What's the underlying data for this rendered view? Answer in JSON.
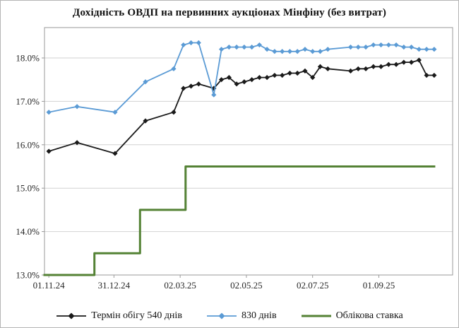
{
  "title": "Дохідність ОВДП на первинних аукціонах Мінфіну (без витрат)",
  "colors": {
    "series_540": "#1a1a1a",
    "series_830": "#5b9bd5",
    "discount_rate": "#548235",
    "gridline": "#d2d2d2",
    "plot_border": "#9a9a9a",
    "tick_text": "#262626"
  },
  "chart_data": {
    "type": "line",
    "title": "Дохідність ОВДП на первинних аукціонах Мінфіну (без витрат)",
    "xlabel": "",
    "ylabel": "",
    "x_unit": "days since 01.11.24",
    "xlim": [
      -4,
      372
    ],
    "ylim": [
      13.0,
      18.7
    ],
    "grid": "horizontal",
    "legend_position": "bottom",
    "yticks": [
      13,
      14,
      15,
      16,
      17,
      18
    ],
    "ytick_labels": [
      "13.0%",
      "14.0%",
      "15.0%",
      "16.0%",
      "17.0%",
      "18.0%"
    ],
    "xticks": [
      {
        "pos": 0,
        "label": "01.11.24"
      },
      {
        "pos": 60,
        "label": "31.12.24"
      },
      {
        "pos": 121,
        "label": "02.03.25"
      },
      {
        "pos": 182,
        "label": "02.05.25"
      },
      {
        "pos": 243,
        "label": "02.07.25"
      },
      {
        "pos": 304,
        "label": "01.09.25"
      }
    ],
    "series": [
      {
        "name": "Термін обігу 540 днів",
        "color": "#1a1a1a",
        "marker": "diamond",
        "width": 1.8,
        "points": [
          [
            0,
            15.85
          ],
          [
            26,
            16.05
          ],
          [
            61,
            15.8
          ],
          [
            89,
            16.55
          ],
          [
            115,
            16.75
          ],
          [
            124,
            17.3
          ],
          [
            131,
            17.35
          ],
          [
            138,
            17.4
          ],
          [
            152,
            17.3
          ],
          [
            159,
            17.5
          ],
          [
            166,
            17.55
          ],
          [
            173,
            17.4
          ],
          [
            180,
            17.45
          ],
          [
            187,
            17.5
          ],
          [
            194,
            17.55
          ],
          [
            201,
            17.55
          ],
          [
            208,
            17.6
          ],
          [
            215,
            17.6
          ],
          [
            222,
            17.65
          ],
          [
            229,
            17.65
          ],
          [
            236,
            17.7
          ],
          [
            243,
            17.55
          ],
          [
            250,
            17.8
          ],
          [
            257,
            17.75
          ],
          [
            278,
            17.7
          ],
          [
            285,
            17.75
          ],
          [
            292,
            17.75
          ],
          [
            299,
            17.8
          ],
          [
            306,
            17.8
          ],
          [
            313,
            17.85
          ],
          [
            320,
            17.85
          ],
          [
            327,
            17.9
          ],
          [
            334,
            17.9
          ],
          [
            341,
            17.95
          ],
          [
            348,
            17.6
          ],
          [
            355,
            17.6
          ]
        ]
      },
      {
        "name": "830 днів",
        "color": "#5b9bd5",
        "marker": "diamond",
        "width": 1.8,
        "points": [
          [
            0,
            16.75
          ],
          [
            26,
            16.88
          ],
          [
            61,
            16.75
          ],
          [
            89,
            17.45
          ],
          [
            115,
            17.75
          ],
          [
            124,
            18.3
          ],
          [
            131,
            18.35
          ],
          [
            138,
            18.35
          ],
          [
            152,
            17.15
          ],
          [
            159,
            18.2
          ],
          [
            166,
            18.25
          ],
          [
            173,
            18.25
          ],
          [
            180,
            18.25
          ],
          [
            187,
            18.25
          ],
          [
            194,
            18.3
          ],
          [
            201,
            18.2
          ],
          [
            208,
            18.15
          ],
          [
            215,
            18.15
          ],
          [
            222,
            18.15
          ],
          [
            229,
            18.15
          ],
          [
            236,
            18.2
          ],
          [
            243,
            18.15
          ],
          [
            250,
            18.15
          ],
          [
            257,
            18.2
          ],
          [
            278,
            18.25
          ],
          [
            285,
            18.25
          ],
          [
            292,
            18.25
          ],
          [
            299,
            18.3
          ],
          [
            306,
            18.3
          ],
          [
            313,
            18.3
          ],
          [
            320,
            18.3
          ],
          [
            327,
            18.25
          ],
          [
            334,
            18.25
          ],
          [
            341,
            18.2
          ],
          [
            348,
            18.2
          ],
          [
            355,
            18.2
          ]
        ]
      },
      {
        "name": "Облікова ставка",
        "color": "#548235",
        "marker": "none",
        "width": 3,
        "points": [
          [
            -4,
            13.0
          ],
          [
            42,
            13.0
          ],
          [
            42,
            13.5
          ],
          [
            84,
            13.5
          ],
          [
            84,
            14.5
          ],
          [
            126,
            14.5
          ],
          [
            126,
            15.5
          ],
          [
            355,
            15.5
          ]
        ]
      }
    ]
  }
}
